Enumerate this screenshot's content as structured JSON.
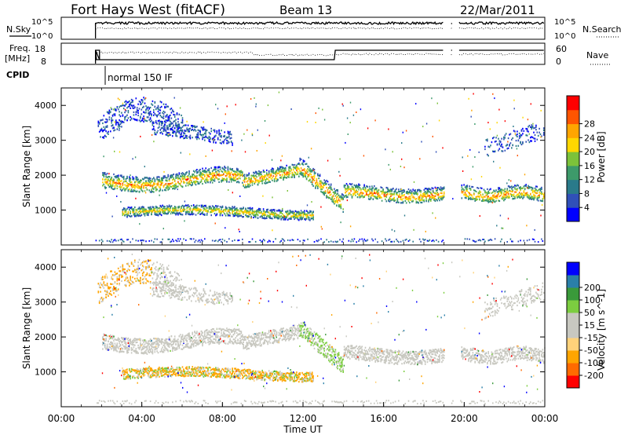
{
  "header": {
    "station": "Fort Hays West (fitACF)",
    "beam": "Beam 13",
    "date": "22/Mar/2011"
  },
  "panels": {
    "nsky": {
      "left_label": "N.Sky",
      "right_label": "N.Search",
      "left_ticks": [
        "10^5",
        "10^0"
      ],
      "right_ticks": [
        "10^5",
        "10^0"
      ]
    },
    "freq": {
      "left_label_line1": "Freq.",
      "left_label_line2": "[MHz]",
      "right_label": "Nave",
      "left_ticks": [
        "18",
        "8"
      ],
      "right_ticks": [
        "60",
        "0"
      ]
    },
    "cpid": {
      "label": "CPID",
      "mode_text": "normal 150 IF"
    }
  },
  "colors": {
    "power": [
      "#0000ff",
      "#3050b8",
      "#2a7a8a",
      "#3d9a6a",
      "#7cc23a",
      "#ffd700",
      "#ffa500",
      "#ff5500",
      "#ff0000"
    ],
    "velocity": [
      "#ff0000",
      "#ff6a00",
      "#ffa500",
      "#ffd27a",
      "#c8c8c0",
      "#c8c8c0",
      "#7ccd40",
      "#3a9a3a",
      "#2a7fa8",
      "#0000ff"
    ],
    "line": "#000000"
  },
  "chart_data": [
    {
      "type": "heatmap",
      "name": "power",
      "ylabel": "Slant Range [km]",
      "colorbar_label": "Power [dB]",
      "colorbar_ticks": [
        "4",
        "8",
        "12",
        "16",
        "20",
        "24",
        "28"
      ],
      "yticks": [
        "1000",
        "2000",
        "3000",
        "4000"
      ],
      "ylim": [
        0,
        4500
      ],
      "xlim": [
        0,
        24
      ]
    },
    {
      "type": "heatmap",
      "name": "velocity",
      "ylabel": "Slant Range [km]",
      "colorbar_label": "Velocity [m s^-1]",
      "colorbar_ticks": [
        "-200",
        "-100",
        "-50",
        "-15",
        "15",
        "50",
        "100",
        "200"
      ],
      "yticks": [
        "1000",
        "2000",
        "3000",
        "4000"
      ],
      "ylim": [
        0,
        4500
      ],
      "xlim": [
        0,
        24
      ]
    }
  ],
  "xaxis": {
    "label": "Time UT",
    "ticks": [
      "00:00",
      "04:00",
      "08:00",
      "12:00",
      "16:00",
      "20:00",
      "00:00"
    ]
  }
}
